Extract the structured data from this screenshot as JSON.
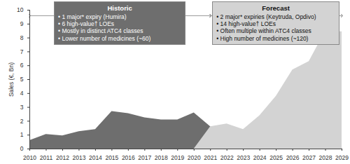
{
  "chart_data": {
    "type": "area",
    "y_label": "Sales (€, Bn)",
    "x": [
      2010,
      2011,
      2012,
      2013,
      2014,
      2015,
      2016,
      2017,
      2018,
      2019,
      2020,
      2021,
      2022,
      2023,
      2024,
      2025,
      2026,
      2027,
      2028,
      2029
    ],
    "series": [
      {
        "name": "Historic",
        "color": "#6e6e6e",
        "values": [
          0.6,
          1.05,
          0.95,
          1.25,
          1.4,
          2.7,
          2.55,
          2.25,
          2.1,
          2.1,
          2.6,
          1.6,
          null,
          null,
          null,
          null,
          null,
          null,
          null,
          null
        ],
        "annotation": [
          "• 1 major* expiry (Humira)",
          "• 6 high-value† LOEs",
          "• Mostly in distinct ATC4 classes",
          "• Lower number of medicines (~60)"
        ]
      },
      {
        "name": "Forecast",
        "color": "#d3d3d3",
        "values": [
          null,
          null,
          null,
          null,
          null,
          null,
          null,
          null,
          null,
          null,
          null,
          1.6,
          1.8,
          1.4,
          2.4,
          3.8,
          5.7,
          6.3,
          8.5,
          8.45
        ],
        "annotation": [
          "• 2 major* expiries (Keytruda, Opdivo)",
          "• 14 high-value† LOEs",
          "• Often multiple within ATC4 classes",
          "• High number of medicines (~120)"
        ]
      }
    ],
    "xlim": [
      2010,
      2029
    ],
    "xticks": [
      2010,
      2011,
      2012,
      2013,
      2014,
      2015,
      2016,
      2017,
      2018,
      2019,
      2020,
      2021,
      2022,
      2023,
      2024,
      2025,
      2026,
      2027,
      2028,
      2029
    ],
    "ylim": [
      0,
      10
    ],
    "yticks": [
      0,
      1,
      2,
      3,
      4,
      5,
      6,
      7,
      8,
      9,
      10
    ],
    "grid": false
  }
}
